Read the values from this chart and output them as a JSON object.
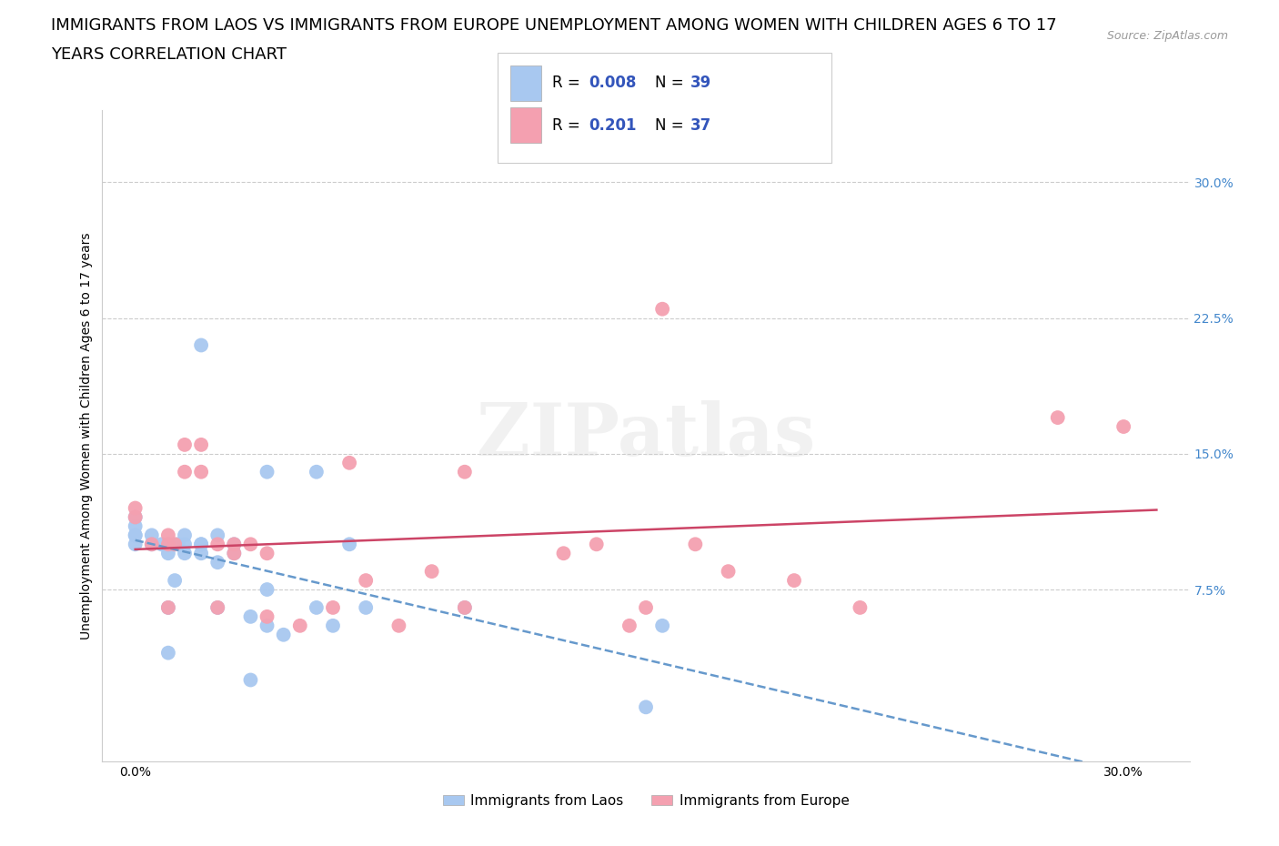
{
  "title_line1": "IMMIGRANTS FROM LAOS VS IMMIGRANTS FROM EUROPE UNEMPLOYMENT AMONG WOMEN WITH CHILDREN AGES 6 TO 17",
  "title_line2": "YEARS CORRELATION CHART",
  "source": "Source: ZipAtlas.com",
  "xlim": [
    -0.01,
    0.32
  ],
  "ylim": [
    -0.02,
    0.34
  ],
  "laos_color": "#a8c8f0",
  "europe_color": "#f4a0b0",
  "laos_R": 0.008,
  "laos_N": 39,
  "europe_R": 0.201,
  "europe_N": 37,
  "laos_line_color": "#6699cc",
  "europe_line_color": "#cc4466",
  "laos_x": [
    0.0,
    0.0,
    0.0,
    0.0,
    0.0,
    0.005,
    0.005,
    0.008,
    0.01,
    0.01,
    0.01,
    0.012,
    0.013,
    0.015,
    0.015,
    0.015,
    0.02,
    0.02,
    0.02,
    0.02,
    0.025,
    0.025,
    0.025,
    0.03,
    0.03,
    0.035,
    0.035,
    0.04,
    0.04,
    0.04,
    0.045,
    0.055,
    0.055,
    0.06,
    0.065,
    0.07,
    0.1,
    0.155,
    0.16
  ],
  "laos_y": [
    0.1,
    0.105,
    0.105,
    0.11,
    0.115,
    0.1,
    0.105,
    0.1,
    0.04,
    0.065,
    0.095,
    0.08,
    0.1,
    0.095,
    0.1,
    0.105,
    0.095,
    0.1,
    0.1,
    0.21,
    0.065,
    0.09,
    0.105,
    0.095,
    0.1,
    0.025,
    0.06,
    0.055,
    0.075,
    0.14,
    0.05,
    0.065,
    0.14,
    0.055,
    0.1,
    0.065,
    0.065,
    0.01,
    0.055
  ],
  "europe_x": [
    0.0,
    0.0,
    0.005,
    0.01,
    0.01,
    0.01,
    0.012,
    0.015,
    0.015,
    0.02,
    0.02,
    0.025,
    0.025,
    0.03,
    0.03,
    0.035,
    0.04,
    0.04,
    0.05,
    0.06,
    0.065,
    0.07,
    0.08,
    0.09,
    0.1,
    0.1,
    0.13,
    0.14,
    0.15,
    0.155,
    0.16,
    0.17,
    0.18,
    0.2,
    0.22,
    0.28,
    0.3
  ],
  "europe_y": [
    0.115,
    0.12,
    0.1,
    0.065,
    0.1,
    0.105,
    0.1,
    0.14,
    0.155,
    0.14,
    0.155,
    0.065,
    0.1,
    0.095,
    0.1,
    0.1,
    0.06,
    0.095,
    0.055,
    0.065,
    0.145,
    0.08,
    0.055,
    0.085,
    0.065,
    0.14,
    0.095,
    0.1,
    0.055,
    0.065,
    0.23,
    0.1,
    0.085,
    0.08,
    0.065,
    0.17,
    0.165
  ],
  "watermark": "ZIPatlas",
  "legend_color": "#3355bb",
  "title_fontsize": 13,
  "axis_label_fontsize": 10,
  "tick_fontsize": 10,
  "right_tick_color": "#4488cc",
  "grid_color": "#cccccc",
  "background_color": "#ffffff",
  "ytick_vals": [
    0.075,
    0.15,
    0.225,
    0.3
  ],
  "ytick_labels": [
    "7.5%",
    "15.0%",
    "22.5%",
    "30.0%"
  ]
}
